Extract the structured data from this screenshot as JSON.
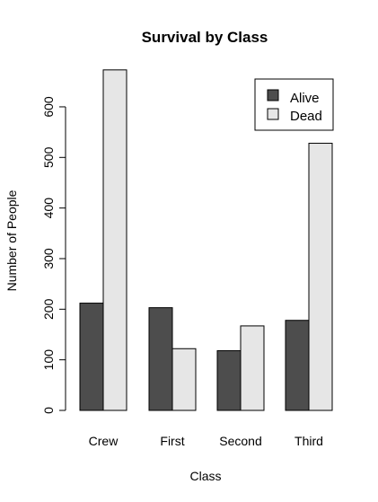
{
  "chart_data": {
    "type": "bar",
    "title": "Survival by Class",
    "xlabel": "Class",
    "ylabel": "Number of People",
    "categories": [
      "Crew",
      "First",
      "Second",
      "Third"
    ],
    "series": [
      {
        "name": "Alive",
        "values": [
          212,
          203,
          118,
          178
        ],
        "color": "#4d4d4d"
      },
      {
        "name": "Dead",
        "values": [
          673,
          122,
          167,
          528
        ],
        "color": "#e6e6e6"
      }
    ],
    "ylim": [
      0,
      700
    ],
    "yticks": [
      0,
      100,
      200,
      300,
      400,
      500,
      600
    ],
    "grid": false,
    "legend_position": "top-right"
  }
}
